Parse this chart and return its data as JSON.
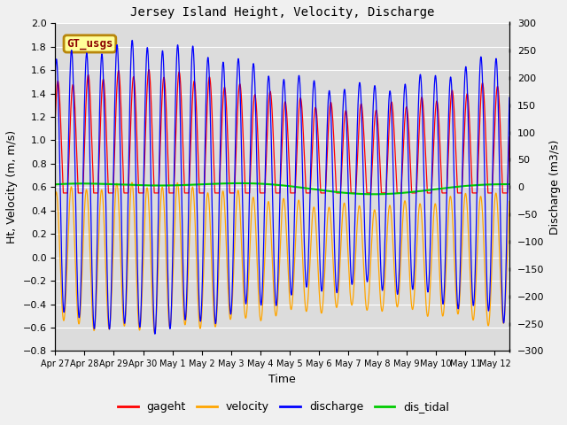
{
  "title": "Jersey Island Height, Velocity, Discharge",
  "xlabel": "Time",
  "ylabel_left": "Ht, Velocity (m, m/s)",
  "ylabel_right": "Discharge (m3/s)",
  "ylim_left": [
    -0.8,
    2.0
  ],
  "ylim_right": [
    -300,
    300
  ],
  "xlim_days": [
    0,
    15.5
  ],
  "x_tick_labels": [
    "Apr 27",
    "Apr 28",
    "Apr 29",
    "Apr 30",
    "May 1",
    "May 2",
    "May 3",
    "May 4",
    "May 5",
    "May 6",
    "May 7",
    "May 8",
    "May 9",
    "May 10",
    "May 11",
    "May 12"
  ],
  "x_tick_positions": [
    0,
    1,
    2,
    3,
    4,
    5,
    6,
    7,
    8,
    9,
    10,
    11,
    12,
    13,
    14,
    15
  ],
  "yticks_left": [
    -0.8,
    -0.6,
    -0.4,
    -0.2,
    0.0,
    0.2,
    0.4,
    0.6,
    0.8,
    1.0,
    1.2,
    1.4,
    1.6,
    1.8,
    2.0
  ],
  "yticks_right": [
    -300,
    -250,
    -200,
    -150,
    -100,
    -50,
    0,
    50,
    100,
    150,
    200,
    250,
    300
  ],
  "colors": {
    "gageht": "#FF0000",
    "velocity": "#FFA500",
    "discharge": "#0000FF",
    "dis_tidal": "#00CC00"
  },
  "legend_box_label": "GT_usgs",
  "fig_facecolor": "#F0F0F0",
  "axes_facecolor": "#DCDCDC",
  "grid_color": "#FFFFFF"
}
